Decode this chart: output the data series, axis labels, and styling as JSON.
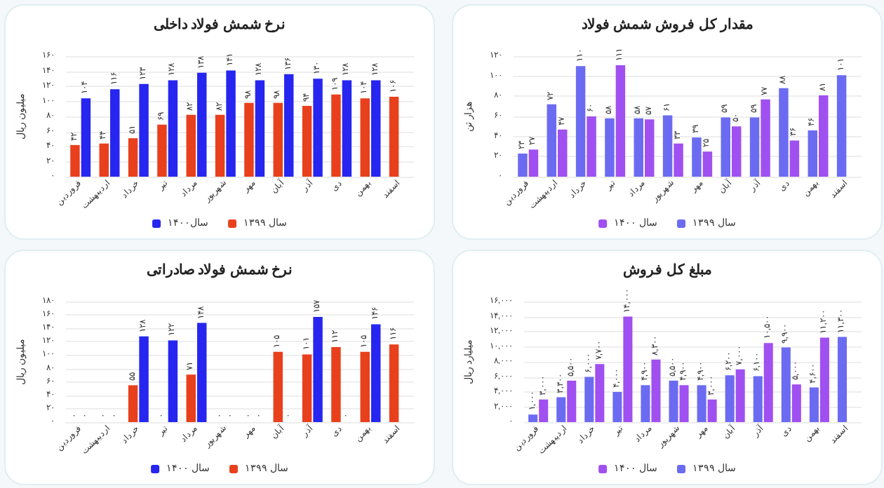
{
  "chart_data": [
    {
      "type": "bar",
      "title": "نرخ شمش فولاد داخلی",
      "ylabel": "میلیون ریال",
      "categories": [
        "فروردین",
        "اردیبهشت",
        "خرداد",
        "تیر",
        "مرداد",
        "شهریور",
        "مهر",
        "آبان",
        "آذر",
        "دی",
        "بهمن",
        "اسفند"
      ],
      "ylim": [
        0,
        160
      ],
      "yticks": [
        {
          "value": 0,
          "label": "۰"
        },
        {
          "value": 20,
          "label": "۲۰"
        },
        {
          "value": 40,
          "label": "۴۰"
        },
        {
          "value": 60,
          "label": "۶۰"
        },
        {
          "value": 80,
          "label": "۸۰"
        },
        {
          "value": 100,
          "label": "۱۰۰"
        },
        {
          "value": 120,
          "label": "۱۲۰"
        },
        {
          "value": 140,
          "label": "۱۴۰"
        },
        {
          "value": 160,
          "label": "۱۶۰"
        }
      ],
      "grid": "y",
      "legend": "bottom",
      "series": [
        {
          "name": "سال ۱۳۹۹",
          "color": "#e8401c",
          "values": [
            42,
            44,
            51,
            69,
            82,
            82,
            98,
            98,
            94,
            109,
            104,
            106
          ],
          "value_labels": [
            "۴۲",
            "۴۴",
            "۵۱",
            "۶۹",
            "۸۲",
            "۸۲",
            "۹۸",
            "۹۸",
            "۹۴",
            "۱۰۹",
            "۱۰۴",
            "۱۰۶"
          ]
        },
        {
          "name": "سال۱۴۰۰",
          "color": "#2626f0",
          "values": [
            104,
            116,
            123,
            128,
            138,
            141,
            128,
            136,
            130,
            128,
            128,
            null
          ],
          "value_labels": [
            "۱۰۴",
            "۱۱۶",
            "۱۲۳",
            "۱۲۸",
            "۱۳۸",
            "۱۴۱",
            "۱۲۸",
            "۱۳۶",
            "۱۳۰",
            "۱۲۸",
            "۱۲۸",
            null
          ]
        }
      ]
    },
    {
      "type": "bar",
      "title": "مقدار کل فروش شمش فولاد",
      "ylabel": "هزار تن",
      "categories": [
        "فروردین",
        "اردیبهشت",
        "خرداد",
        "تیر",
        "مرداد",
        "شهریور",
        "مهر",
        "آبان",
        "آذر",
        "دی",
        "بهمن",
        "اسفند"
      ],
      "ylim": [
        0,
        120
      ],
      "yticks": [
        {
          "value": 0,
          "label": "۰"
        },
        {
          "value": 20,
          "label": "۲۰"
        },
        {
          "value": 40,
          "label": "۴۰"
        },
        {
          "value": 60,
          "label": "۶۰"
        },
        {
          "value": 80,
          "label": "۸۰"
        },
        {
          "value": 100,
          "label": "۱۰۰"
        },
        {
          "value": 120,
          "label": "۱۲۰"
        }
      ],
      "grid": "y",
      "legend": "bottom",
      "series": [
        {
          "name": "سال ۱۳۹۹",
          "color": "#6b6bf2",
          "values": [
            23,
            72,
            110,
            58,
            58,
            61,
            39,
            59,
            59,
            88,
            46,
            101
          ],
          "value_labels": [
            "۲۳",
            "۷۲",
            "۱۱۰",
            "۵۸",
            "۵۸",
            "۶۱",
            "۳۹",
            "۵۹",
            "۵۹",
            "۸۸",
            "۴۶",
            "۱۰۱"
          ]
        },
        {
          "name": "سال ۱۴۰۰",
          "color": "#a050f0",
          "values": [
            27,
            47,
            60,
            111,
            57,
            33,
            25,
            50,
            77,
            36,
            81,
            null
          ],
          "value_labels": [
            "۲۷",
            "۴۷",
            "۶۰",
            "۱۱۱",
            "۵۷",
            "۳۳",
            "۲۵",
            "۵۰",
            "۷۷",
            "۳۶",
            "۸۱",
            null
          ]
        }
      ]
    },
    {
      "type": "bar",
      "title": "نرخ شمش فولاد صادراتی",
      "ylabel": "میلیون ریال",
      "categories": [
        "فروردین",
        "اردیبهشت",
        "خرداد",
        "تیر",
        "مرداد",
        "شهریور",
        "مهر",
        "آبان",
        "آذر",
        "دی",
        "بهمن",
        "اسفند"
      ],
      "ylim": [
        0,
        180
      ],
      "yticks": [
        {
          "value": 0,
          "label": "۰"
        },
        {
          "value": 20,
          "label": "۲۰"
        },
        {
          "value": 40,
          "label": "۴۰"
        },
        {
          "value": 60,
          "label": "۶۰"
        },
        {
          "value": 80,
          "label": "۸۰"
        },
        {
          "value": 100,
          "label": "۱۰۰"
        },
        {
          "value": 120,
          "label": "۱۲۰"
        },
        {
          "value": 140,
          "label": "۱۴۰"
        },
        {
          "value": 160,
          "label": "۱۶۰"
        },
        {
          "value": 180,
          "label": "۱۸۰"
        }
      ],
      "grid": "y",
      "legend": "bottom",
      "series": [
        {
          "name": "سال ۱۳۹۹",
          "color": "#e8401c",
          "values": [
            0,
            0,
            55,
            0,
            71,
            0,
            0,
            105,
            101,
            112,
            105,
            116
          ],
          "value_labels": [
            "۰",
            "۰",
            "۵۵",
            "۰",
            "۷۱",
            "۰",
            "۰",
            "۱۰۵",
            "۱۰۱",
            "۱۱۲",
            "۱۰۵",
            "۱۱۶"
          ]
        },
        {
          "name": "سال ۱۴۰۰",
          "color": "#2626f0",
          "values": [
            0,
            0,
            128,
            122,
            148,
            0,
            0,
            0,
            157,
            0,
            146,
            null
          ],
          "value_labels": [
            "۰",
            "۰",
            "۱۲۸",
            "۱۲۲",
            "۱۴۸",
            "۰",
            "۰",
            "۰",
            "۱۵۷",
            "۰",
            "۱۴۶",
            null
          ]
        }
      ]
    },
    {
      "type": "bar",
      "title": "مبلغ کل فروش",
      "ylabel": "میلیارد ریال",
      "categories": [
        "فروردین",
        "اردیبهشت",
        "خرداد",
        "تیر",
        "مرداد",
        "شهریور",
        "مهر",
        "آبان",
        "آذر",
        "دی",
        "بهمن",
        "اسفند"
      ],
      "ylim": [
        0,
        16000
      ],
      "yticks": [
        {
          "value": 0,
          "label": "۰"
        },
        {
          "value": 2000,
          "label": "۲,۰۰۰"
        },
        {
          "value": 4000,
          "label": "۴,۰۰۰"
        },
        {
          "value": 6000,
          "label": "۶,۰۰۰"
        },
        {
          "value": 8000,
          "label": "۸,۰۰۰"
        },
        {
          "value": 10000,
          "label": "۱۰,۰۰۰"
        },
        {
          "value": 12000,
          "label": "۱۲,۰۰۰"
        },
        {
          "value": 14000,
          "label": "۱۴,۰۰۰"
        },
        {
          "value": 16000,
          "label": "۱۶,۰۰۰"
        }
      ],
      "grid": "y",
      "legend": "bottom",
      "series": [
        {
          "name": "سال ۱۳۹۹",
          "color": "#6b6bf2",
          "values": [
            1000,
            3300,
            6000,
            4000,
            4900,
            5500,
            4900,
            6200,
            6100,
            9900,
            4600,
            11300
          ],
          "value_labels": [
            "۱,۰۰۰",
            "۳,۳۰۰",
            "۶,۰۰۰",
            "۴,۰۰۰",
            "۴,۹۰۰",
            "۵,۵۰۰",
            "۴,۹۰۰",
            "۶,۲۰۰",
            "۶,۱۰۰",
            "۹,۹۰۰",
            "۴,۶۰۰",
            "۱۱,۳۰۰"
          ]
        },
        {
          "name": "سال ۱۴۰۰",
          "color": "#a050f0",
          "values": [
            3000,
            5500,
            7700,
            14000,
            8300,
            4900,
            3000,
            7000,
            10500,
            5000,
            11200,
            null
          ],
          "value_labels": [
            "۳,۰۰۰",
            "۵,۵۰۰",
            "۷,۷۰۰",
            "۱۴,۰۰۰",
            "۸,۳۰۰",
            "۴,۹۰۰",
            "۳,۰۰۰",
            "۷,۰۰۰",
            "۱۰,۵۰۰",
            "۵,۰۰۰",
            "۱۱,۲۰۰",
            null
          ]
        }
      ]
    }
  ]
}
